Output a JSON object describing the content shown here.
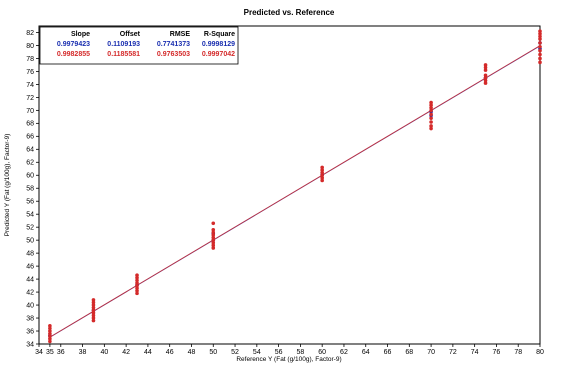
{
  "chart_data": {
    "type": "scatter",
    "title": "Predicted vs. Reference",
    "xlabel": "Reference Y (Fat (g/100g), Factor-9)",
    "ylabel": "Predicted Y (Fat (g/100g), Factor-9)",
    "xlim": [
      34,
      80
    ],
    "ylim": [
      34,
      83
    ],
    "x_ticks": [
      34,
      35,
      36,
      38,
      40,
      42,
      44,
      46,
      48,
      50,
      52,
      54,
      56,
      58,
      60,
      62,
      64,
      66,
      68,
      70,
      72,
      74,
      76,
      78,
      80
    ],
    "y_ticks": [
      34,
      36,
      38,
      40,
      42,
      44,
      46,
      48,
      50,
      52,
      54,
      56,
      58,
      60,
      62,
      64,
      66,
      68,
      70,
      72,
      74,
      76,
      78,
      80,
      82
    ],
    "grid": false,
    "stats_table": {
      "headers": [
        "Slope",
        "Offset",
        "RMSE",
        "R-Square"
      ],
      "rows": [
        {
          "color": "#1a2fb0",
          "values": [
            "0.9979423",
            "0.1109193",
            "0.7741373",
            "0.9998129"
          ]
        },
        {
          "color": "#d42a2a",
          "values": [
            "0.9982855",
            "0.1185581",
            "0.9763503",
            "0.9997042"
          ]
        }
      ]
    },
    "series": [
      {
        "color": "#1a2fb0",
        "regression": {
          "slope": 0.9979423,
          "offset": 0.1109193
        },
        "points": [
          {
            "x": 35,
            "y": 35.3
          },
          {
            "x": 39,
            "y": 39.2
          },
          {
            "x": 43,
            "y": 43.1
          },
          {
            "x": 50,
            "y": 50.0
          },
          {
            "x": 50,
            "y": 51.0
          },
          {
            "x": 60,
            "y": 60.1
          },
          {
            "x": 70,
            "y": 69.2
          },
          {
            "x": 70,
            "y": 69.8
          },
          {
            "x": 75,
            "y": 75.0
          },
          {
            "x": 80,
            "y": 79.5
          },
          {
            "x": 80,
            "y": 80.4
          }
        ]
      },
      {
        "color": "#d42a2a",
        "regression": {
          "slope": 0.9982855,
          "offset": 0.1185581
        },
        "points": [
          {
            "x": 35,
            "y": 34.4
          },
          {
            "x": 35,
            "y": 34.8
          },
          {
            "x": 35,
            "y": 35.2
          },
          {
            "x": 35,
            "y": 35.6
          },
          {
            "x": 35,
            "y": 36.0
          },
          {
            "x": 35,
            "y": 36.4
          },
          {
            "x": 35,
            "y": 36.8
          },
          {
            "x": 39,
            "y": 37.6
          },
          {
            "x": 39,
            "y": 38.0
          },
          {
            "x": 39,
            "y": 38.4
          },
          {
            "x": 39,
            "y": 38.8
          },
          {
            "x": 39,
            "y": 39.2
          },
          {
            "x": 39,
            "y": 39.6
          },
          {
            "x": 39,
            "y": 40.0
          },
          {
            "x": 39,
            "y": 40.4
          },
          {
            "x": 39,
            "y": 40.8
          },
          {
            "x": 43,
            "y": 41.8
          },
          {
            "x": 43,
            "y": 42.2
          },
          {
            "x": 43,
            "y": 42.6
          },
          {
            "x": 43,
            "y": 43.0
          },
          {
            "x": 43,
            "y": 43.4
          },
          {
            "x": 43,
            "y": 43.8
          },
          {
            "x": 43,
            "y": 44.2
          },
          {
            "x": 43,
            "y": 44.6
          },
          {
            "x": 50,
            "y": 48.8
          },
          {
            "x": 50,
            "y": 49.2
          },
          {
            "x": 50,
            "y": 49.6
          },
          {
            "x": 50,
            "y": 50.0
          },
          {
            "x": 50,
            "y": 50.4
          },
          {
            "x": 50,
            "y": 50.8
          },
          {
            "x": 50,
            "y": 51.2
          },
          {
            "x": 50,
            "y": 51.6
          },
          {
            "x": 50,
            "y": 52.6
          },
          {
            "x": 60,
            "y": 59.2
          },
          {
            "x": 60,
            "y": 59.6
          },
          {
            "x": 60,
            "y": 60.0
          },
          {
            "x": 60,
            "y": 60.4
          },
          {
            "x": 60,
            "y": 60.8
          },
          {
            "x": 60,
            "y": 61.2
          },
          {
            "x": 70,
            "y": 67.2
          },
          {
            "x": 70,
            "y": 67.6
          },
          {
            "x": 70,
            "y": 68.2
          },
          {
            "x": 70,
            "y": 68.8
          },
          {
            "x": 70,
            "y": 69.4
          },
          {
            "x": 70,
            "y": 70.0
          },
          {
            "x": 70,
            "y": 70.4
          },
          {
            "x": 70,
            "y": 70.8
          },
          {
            "x": 70,
            "y": 71.2
          },
          {
            "x": 75,
            "y": 74.2
          },
          {
            "x": 75,
            "y": 74.6
          },
          {
            "x": 75,
            "y": 75.0
          },
          {
            "x": 75,
            "y": 75.4
          },
          {
            "x": 75,
            "y": 76.2
          },
          {
            "x": 75,
            "y": 76.6
          },
          {
            "x": 75,
            "y": 77.0
          },
          {
            "x": 80,
            "y": 77.4
          },
          {
            "x": 80,
            "y": 78.0
          },
          {
            "x": 80,
            "y": 78.6
          },
          {
            "x": 80,
            "y": 79.2
          },
          {
            "x": 80,
            "y": 79.8
          },
          {
            "x": 80,
            "y": 80.4
          },
          {
            "x": 80,
            "y": 81.0
          },
          {
            "x": 80,
            "y": 81.4
          },
          {
            "x": 80,
            "y": 81.8
          },
          {
            "x": 80,
            "y": 82.2
          }
        ]
      }
    ]
  }
}
